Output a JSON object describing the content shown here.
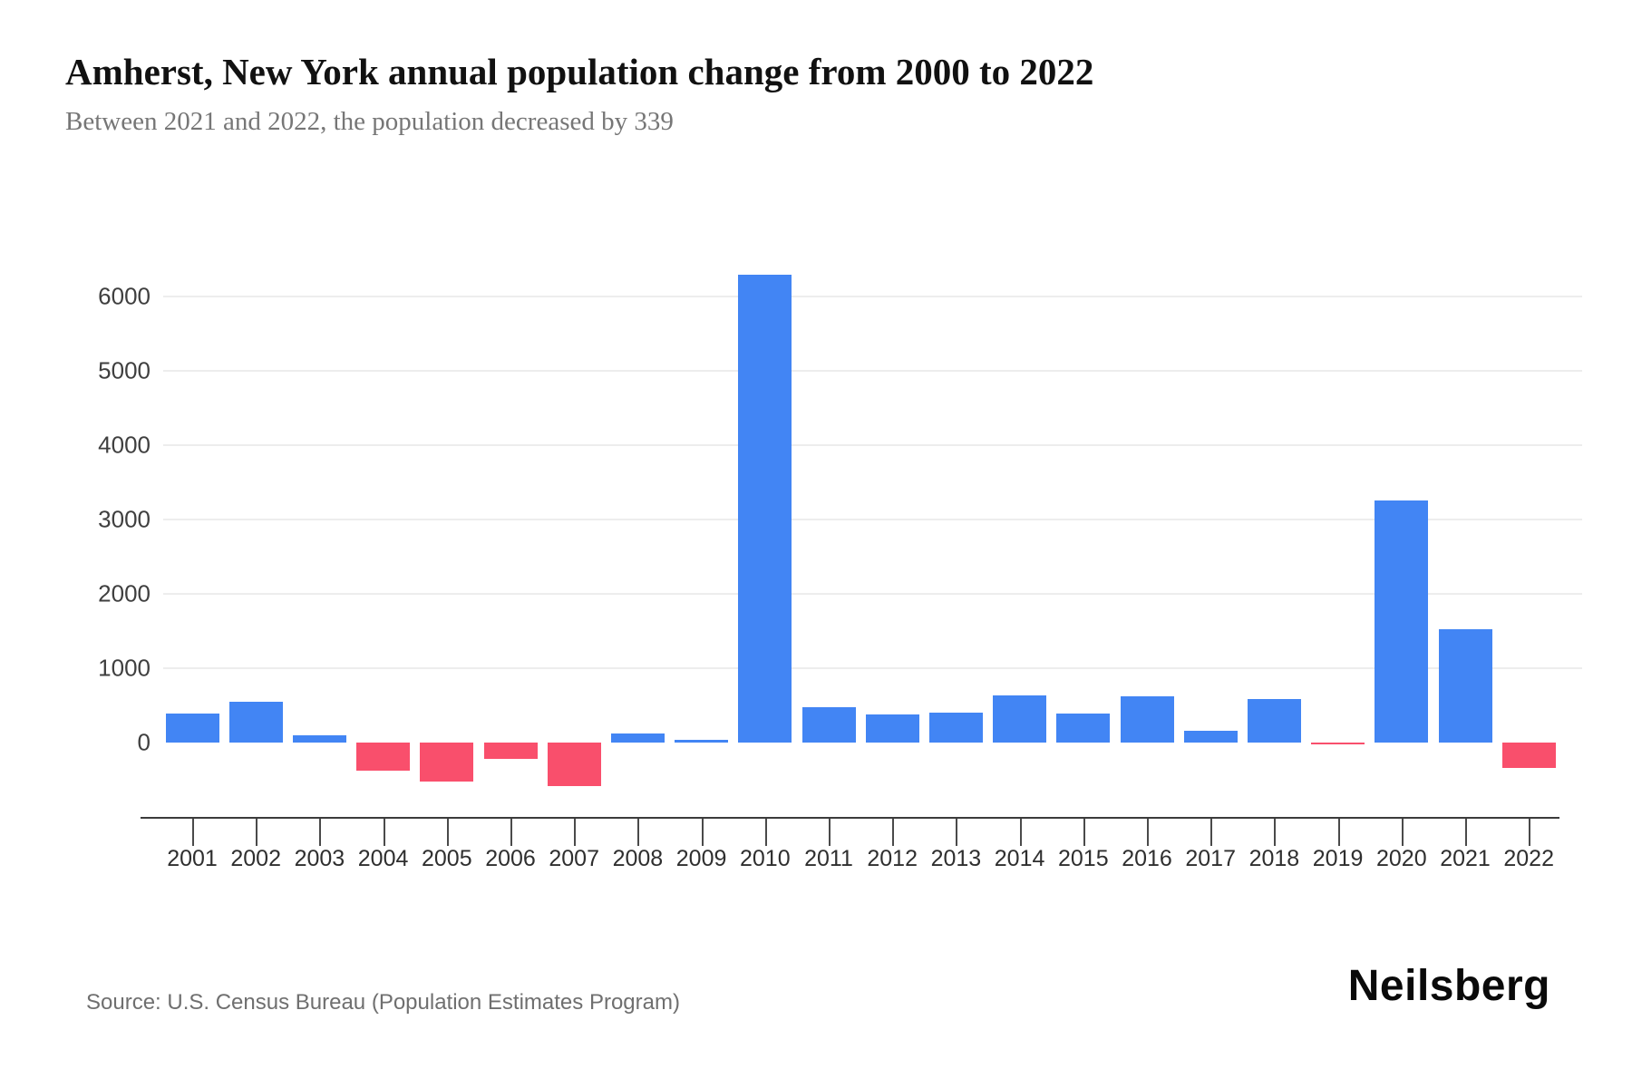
{
  "header": {
    "title": "Amherst, New York annual population change from 2000 to 2022",
    "subtitle": "Between 2021 and 2022, the population decreased by 339"
  },
  "footer": {
    "source": "Source: U.S. Census Bureau (Population Estimates Program)",
    "brand": "Neilsberg"
  },
  "colors": {
    "positive_bar": "#4285f4",
    "negative_bar": "#f94f6c",
    "gridline": "#ededed",
    "axis_line": "#3b3b3b",
    "title_text": "#111111",
    "subtitle_text": "#767676",
    "tick_text": "#3f3f3f"
  },
  "chart_data": {
    "type": "bar",
    "title": "Amherst, New York annual population change from 2000 to 2022",
    "subtitle": "Between 2021 and 2022, the population decreased by 339",
    "xlabel": "",
    "ylabel": "",
    "categories": [
      "2001",
      "2002",
      "2003",
      "2004",
      "2005",
      "2006",
      "2007",
      "2008",
      "2009",
      "2010",
      "2011",
      "2012",
      "2013",
      "2014",
      "2015",
      "2016",
      "2017",
      "2018",
      "2019",
      "2020",
      "2021",
      "2022"
    ],
    "values": [
      390,
      550,
      100,
      -380,
      -530,
      -220,
      -590,
      120,
      40,
      6290,
      480,
      375,
      400,
      635,
      385,
      625,
      160,
      580,
      -25,
      3260,
      1520,
      -339
    ],
    "series_name": "Annual population change",
    "yticks": [
      0,
      1000,
      2000,
      3000,
      4000,
      5000,
      6000
    ],
    "ylim": [
      -1000,
      6500
    ],
    "grid": "horizontal",
    "legend": "none",
    "positive_color": "#4285f4",
    "negative_color": "#f94f6c"
  }
}
